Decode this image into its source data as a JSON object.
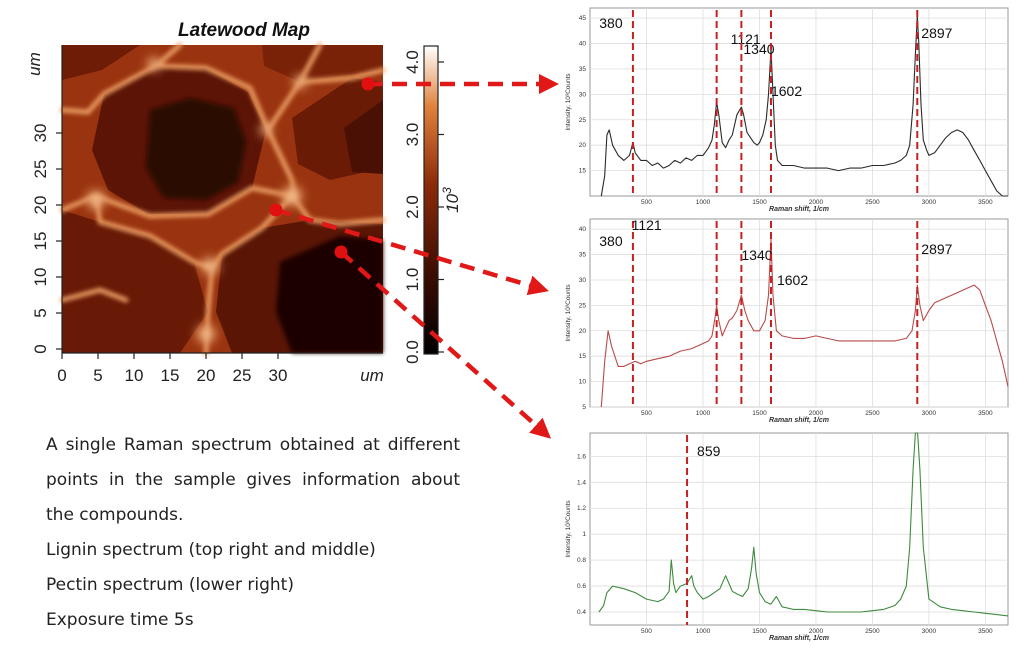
{
  "map": {
    "title": "Latewood Map",
    "xlabel": "um",
    "ylabel": "um",
    "xticks": [
      "0",
      "5",
      "10",
      "15",
      "20",
      "25",
      "30"
    ],
    "yticks": [
      "0",
      "5",
      "10",
      "15",
      "20",
      "25",
      "30"
    ],
    "colorbar": {
      "ticks": [
        "0.0",
        "1.0",
        "2.0",
        "3.0",
        "4.0"
      ],
      "unit": "10",
      "unit_exp": "3"
    },
    "colors": {
      "dark": "#1a0500",
      "mid": "#8c2a0a",
      "bright": "#f7c08a",
      "highlight": "#fff2dc",
      "marker": "#e01010",
      "arrow": "#e01818"
    }
  },
  "caption": {
    "paragraph": "A single Raman spectrum obtained at different points in the sample gives information about the compounds.",
    "line1": "Lignin spectrum (top right and middle)",
    "line2": "Pectin spectrum (lower right)",
    "line3": "Exposure time 5s"
  },
  "chart_data": [
    {
      "type": "line",
      "title": "",
      "xlabel": "Raman shift, 1/cm",
      "ylabel": "Intensity, 10³Counts",
      "xlim": [
        0,
        3700
      ],
      "ylim": [
        10,
        47
      ],
      "xticks": [
        500,
        1000,
        1500,
        2000,
        2500,
        3000,
        3500
      ],
      "yticks": [
        15,
        20,
        25,
        30,
        35,
        40,
        45
      ],
      "grid": true,
      "color": "#2a2a2a",
      "peaks": [
        380,
        1121,
        1340,
        1602,
        2897
      ],
      "peak_labels": [
        "380",
        "1121",
        "1340",
        "1602",
        "2897"
      ],
      "x": [
        100,
        130,
        150,
        170,
        200,
        250,
        300,
        350,
        380,
        400,
        450,
        500,
        550,
        600,
        650,
        700,
        750,
        800,
        850,
        900,
        950,
        1000,
        1050,
        1080,
        1100,
        1121,
        1140,
        1170,
        1200,
        1230,
        1260,
        1300,
        1340,
        1360,
        1390,
        1420,
        1450,
        1480,
        1500,
        1530,
        1560,
        1580,
        1602,
        1620,
        1640,
        1660,
        1700,
        1800,
        1900,
        2000,
        2100,
        2200,
        2300,
        2400,
        2500,
        2600,
        2700,
        2750,
        2800,
        2830,
        2860,
        2880,
        2897,
        2910,
        2930,
        2950,
        2980,
        3000,
        3050,
        3100,
        3150,
        3200,
        3250,
        3300,
        3350,
        3400,
        3450,
        3500,
        3550,
        3600,
        3650,
        3700
      ],
      "y": [
        10,
        14,
        22,
        23,
        20,
        18,
        17,
        18,
        20.5,
        18.5,
        17,
        17,
        16,
        16.5,
        15.5,
        16,
        17,
        16.5,
        17.5,
        17,
        18,
        18,
        19.5,
        21,
        24,
        28.5,
        26,
        20.5,
        19.5,
        21,
        22,
        26,
        27.5,
        26,
        22.5,
        21.5,
        20.5,
        20,
        20.5,
        22,
        25,
        30,
        39,
        30,
        20,
        17,
        16,
        16,
        15.5,
        15.5,
        15.5,
        15,
        15.5,
        15.5,
        16,
        16,
        16.5,
        17,
        18,
        20,
        28,
        38,
        45.5,
        40,
        28,
        21,
        19,
        18,
        18.5,
        20,
        21.5,
        22.5,
        23,
        22.5,
        21,
        19,
        17,
        15,
        13,
        11,
        10,
        9
      ]
    },
    {
      "type": "line",
      "title": "",
      "xlabel": "Raman shift, 1/cm",
      "ylabel": "Intensity, 10³Counts",
      "xlim": [
        0,
        3700
      ],
      "ylim": [
        5,
        42
      ],
      "xticks": [
        500,
        1000,
        1500,
        2000,
        2500,
        3000,
        3500
      ],
      "yticks": [
        5,
        10,
        15,
        20,
        25,
        30,
        35,
        40
      ],
      "grid": true,
      "color": "#b94a4a",
      "peaks": [
        380,
        1121,
        1340,
        1602,
        2897
      ],
      "peak_labels": [
        "380",
        "1121",
        "1340",
        "1602",
        "2897"
      ],
      "x": [
        100,
        130,
        160,
        190,
        250,
        300,
        350,
        400,
        450,
        500,
        600,
        700,
        800,
        900,
        1000,
        1050,
        1080,
        1110,
        1121,
        1140,
        1170,
        1200,
        1230,
        1260,
        1300,
        1340,
        1370,
        1400,
        1450,
        1500,
        1550,
        1580,
        1602,
        1620,
        1650,
        1700,
        1800,
        1900,
        2000,
        2100,
        2200,
        2300,
        2400,
        2500,
        2600,
        2700,
        2800,
        2850,
        2880,
        2897,
        2920,
        2950,
        3000,
        3050,
        3100,
        3150,
        3200,
        3250,
        3300,
        3350,
        3400,
        3450,
        3500,
        3550,
        3600,
        3650,
        3700
      ],
      "y": [
        5,
        14,
        20,
        17,
        13,
        13,
        13.5,
        14,
        13.5,
        14,
        14.5,
        15,
        16,
        16.5,
        17.5,
        18,
        19,
        23,
        25,
        22,
        19,
        20.5,
        22,
        22.5,
        24,
        27,
        24,
        22,
        20,
        20,
        22,
        27,
        38,
        27,
        20,
        19,
        18.5,
        18.5,
        19,
        18.5,
        18,
        18,
        18,
        18,
        18,
        18,
        18.5,
        20,
        24,
        29,
        25,
        22,
        24,
        25.5,
        26,
        26.5,
        27,
        27.5,
        28,
        28.5,
        29,
        28,
        25,
        22,
        18,
        14,
        9
      ]
    },
    {
      "type": "line",
      "title": "",
      "xlabel": "Raman shift, 1/cm",
      "ylabel": "Intensity, 10³Counts",
      "xlim": [
        0,
        3700
      ],
      "ylim": [
        0.3,
        1.78
      ],
      "xticks": [
        500,
        1000,
        1500,
        2000,
        2500,
        3000,
        3500
      ],
      "yticks": [
        0.4,
        0.6,
        0.8,
        1.0,
        1.2,
        1.4,
        1.6
      ],
      "grid": true,
      "color": "#3f8a3f",
      "peaks": [
        859
      ],
      "peak_labels": [
        "859"
      ],
      "x": [
        80,
        120,
        150,
        200,
        300,
        400,
        500,
        600,
        650,
        700,
        720,
        740,
        760,
        800,
        859,
        900,
        920,
        950,
        1000,
        1050,
        1100,
        1150,
        1200,
        1230,
        1260,
        1300,
        1350,
        1400,
        1430,
        1450,
        1470,
        1500,
        1550,
        1600,
        1650,
        1700,
        1800,
        1900,
        2000,
        2100,
        2200,
        2300,
        2400,
        2500,
        2600,
        2700,
        2750,
        2800,
        2830,
        2860,
        2880,
        2900,
        2920,
        2950,
        3000,
        3100,
        3200,
        3300,
        3400,
        3500,
        3600,
        3700
      ],
      "y": [
        0.4,
        0.45,
        0.55,
        0.6,
        0.58,
        0.55,
        0.5,
        0.48,
        0.5,
        0.56,
        0.8,
        0.62,
        0.55,
        0.6,
        0.62,
        0.68,
        0.6,
        0.55,
        0.5,
        0.52,
        0.55,
        0.58,
        0.68,
        0.62,
        0.56,
        0.54,
        0.52,
        0.58,
        0.74,
        0.9,
        0.7,
        0.55,
        0.48,
        0.46,
        0.52,
        0.44,
        0.42,
        0.42,
        0.41,
        0.4,
        0.4,
        0.4,
        0.4,
        0.41,
        0.42,
        0.45,
        0.5,
        0.6,
        0.9,
        1.5,
        1.78,
        1.78,
        1.5,
        0.9,
        0.5,
        0.44,
        0.42,
        0.41,
        0.4,
        0.39,
        0.38,
        0.37
      ]
    }
  ]
}
